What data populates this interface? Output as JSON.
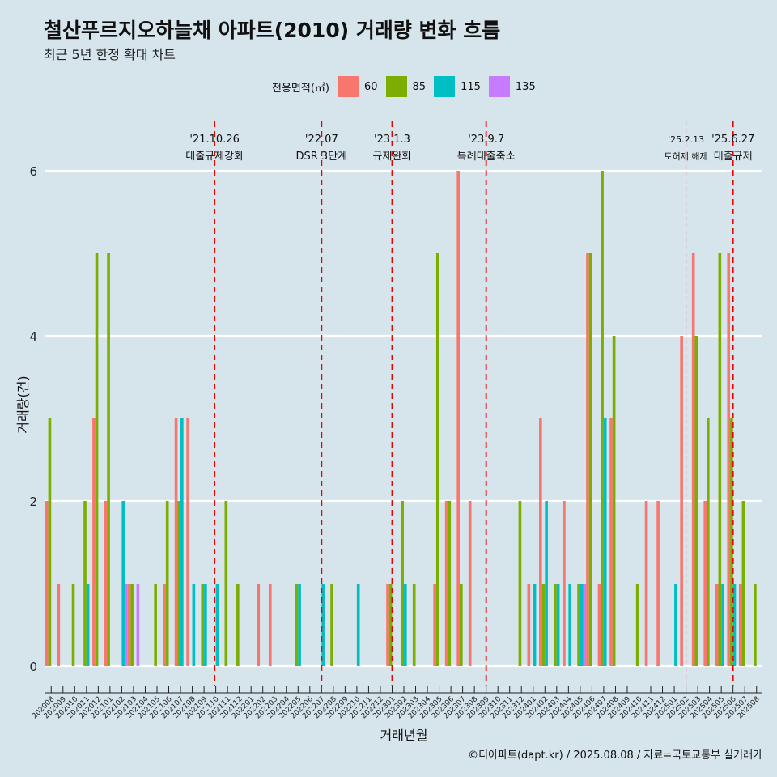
{
  "title": "철산푸르지오하늘채 아파트(2010) 거래량 변화 흐름",
  "subtitle": "최근 5년 한정 확대 차트",
  "caption": "©디아파트(dapt.kr) / 2025.08.08 / 자료=국토교통부 실거래가",
  "legend": {
    "title": "전용면적(㎡)",
    "items": [
      {
        "label": "60",
        "color": "#F8766D"
      },
      {
        "label": "85",
        "color": "#7CAE00"
      },
      {
        "label": "115",
        "color": "#00BFC4"
      },
      {
        "label": "135",
        "color": "#C77CFF"
      }
    ]
  },
  "chart_data": {
    "type": "bar",
    "xlabel": "거래년월",
    "ylabel": "거래량(건)",
    "ylim": [
      0,
      6
    ],
    "yticks": [
      0,
      2,
      4,
      6
    ],
    "grid": true,
    "legend_position": "top",
    "categories": [
      "202008",
      "202009",
      "202010",
      "202011",
      "202012",
      "202101",
      "202102",
      "202103",
      "202104",
      "202105",
      "202106",
      "202107",
      "202108",
      "202109",
      "202110",
      "202111",
      "202112",
      "202201",
      "202202",
      "202203",
      "202204",
      "202205",
      "202206",
      "202207",
      "202208",
      "202209",
      "202210",
      "202211",
      "202212",
      "202301",
      "202302",
      "202303",
      "202304",
      "202305",
      "202306",
      "202307",
      "202308",
      "202309",
      "202310",
      "202311",
      "202312",
      "202401",
      "202402",
      "202403",
      "202404",
      "202405",
      "202406",
      "202407",
      "202408",
      "202409",
      "202410",
      "202411",
      "202412",
      "202501",
      "202502",
      "202503",
      "202504",
      "202505",
      "202506",
      "202507",
      "202508"
    ],
    "series": [
      {
        "name": "60",
        "color": "#F8766D",
        "values": [
          2,
          1,
          0,
          0,
          3,
          2,
          0,
          1,
          0,
          0,
          1,
          3,
          3,
          0,
          0,
          0,
          0,
          0,
          1,
          1,
          0,
          0,
          0,
          0,
          0,
          0,
          0,
          0,
          0,
          1,
          0,
          0,
          0,
          1,
          2,
          6,
          2,
          0,
          0,
          0,
          0,
          1,
          3,
          0,
          2,
          0,
          5,
          1,
          3,
          0,
          0,
          2,
          2,
          0,
          4,
          5,
          2,
          1,
          5,
          1,
          0
        ]
      },
      {
        "name": "85",
        "color": "#7CAE00",
        "values": [
          3,
          0,
          1,
          2,
          5,
          5,
          0,
          1,
          0,
          1,
          2,
          2,
          0,
          1,
          0,
          2,
          1,
          0,
          0,
          0,
          0,
          1,
          0,
          0,
          1,
          0,
          0,
          0,
          0,
          1,
          2,
          1,
          0,
          5,
          2,
          1,
          0,
          0,
          0,
          0,
          2,
          0,
          1,
          1,
          0,
          1,
          5,
          6,
          4,
          0,
          1,
          0,
          0,
          0,
          0,
          4,
          3,
          5,
          3,
          2,
          1
        ]
      },
      {
        "name": "115",
        "color": "#00BFC4",
        "values": [
          0,
          0,
          0,
          1,
          0,
          0,
          2,
          0,
          0,
          0,
          0,
          3,
          1,
          1,
          1,
          0,
          0,
          0,
          0,
          0,
          0,
          1,
          0,
          1,
          0,
          0,
          1,
          0,
          0,
          0,
          1,
          0,
          0,
          0,
          0,
          0,
          0,
          0,
          0,
          0,
          0,
          1,
          2,
          1,
          1,
          1,
          0,
          3,
          0,
          0,
          0,
          0,
          0,
          1,
          0,
          0,
          0,
          1,
          1,
          0,
          0
        ]
      },
      {
        "name": "135",
        "color": "#C77CFF",
        "values": [
          0,
          0,
          0,
          0,
          0,
          0,
          1,
          1,
          0,
          0,
          0,
          0,
          0,
          0,
          0,
          0,
          0,
          0,
          0,
          0,
          0,
          0,
          0,
          0,
          0,
          0,
          0,
          0,
          0,
          0,
          0,
          0,
          0,
          0,
          0,
          0,
          0,
          0,
          0,
          0,
          0,
          0,
          0,
          0,
          0,
          1,
          0,
          0,
          0,
          0,
          0,
          0,
          0,
          0,
          0,
          0,
          0,
          0,
          0,
          0,
          0
        ]
      }
    ],
    "annotations": [
      {
        "date": "'21.10.26",
        "label": "대출규제강화",
        "x": 14.4,
        "style": "dashed"
      },
      {
        "date": "'22.07",
        "label": "DSR 3단계",
        "x": 23.5,
        "style": "dashed"
      },
      {
        "date": "'23.1.3",
        "label": "규제완화",
        "x": 29.5,
        "style": "dashed"
      },
      {
        "date": "'23.9.7",
        "label": "특례대출축소",
        "x": 37.5,
        "style": "dashed"
      },
      {
        "date": "'25.2.13",
        "label": "토허제 해제",
        "x": 54.5,
        "style": "thin-dashed"
      },
      {
        "date": "'25.6.27",
        "label": "대출규제",
        "x": 58.5,
        "style": "dashed"
      }
    ]
  }
}
